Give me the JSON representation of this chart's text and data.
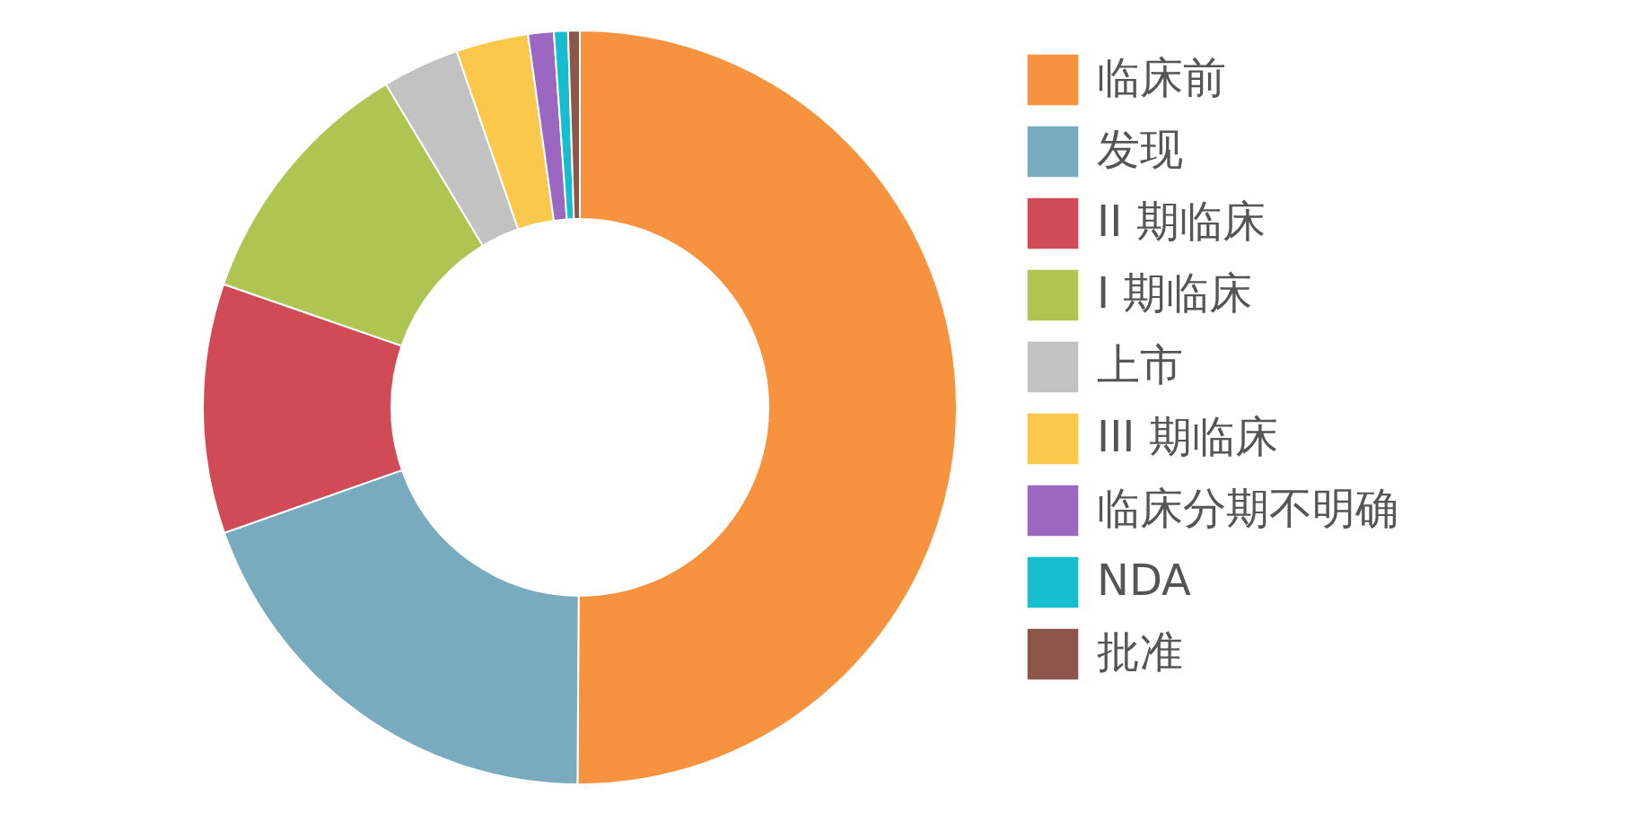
{
  "chart_data": {
    "type": "donut",
    "categories": [
      "临床前",
      "发现",
      "II 期临床",
      "I 期临床",
      "上市",
      "III 期临床",
      "临床分期不明确",
      "NDA",
      "批准"
    ],
    "values": [
      50.1,
      19.5,
      10.7,
      11.1,
      3.3,
      3.1,
      1.1,
      0.6,
      0.5
    ],
    "colors": [
      "#f7923e",
      "#78abbe",
      "#d04b55",
      "#aec651",
      "#c2c2c2",
      "#fcc84c",
      "#9b67c1",
      "#14becf",
      "#8c564b"
    ],
    "legend": "right"
  }
}
